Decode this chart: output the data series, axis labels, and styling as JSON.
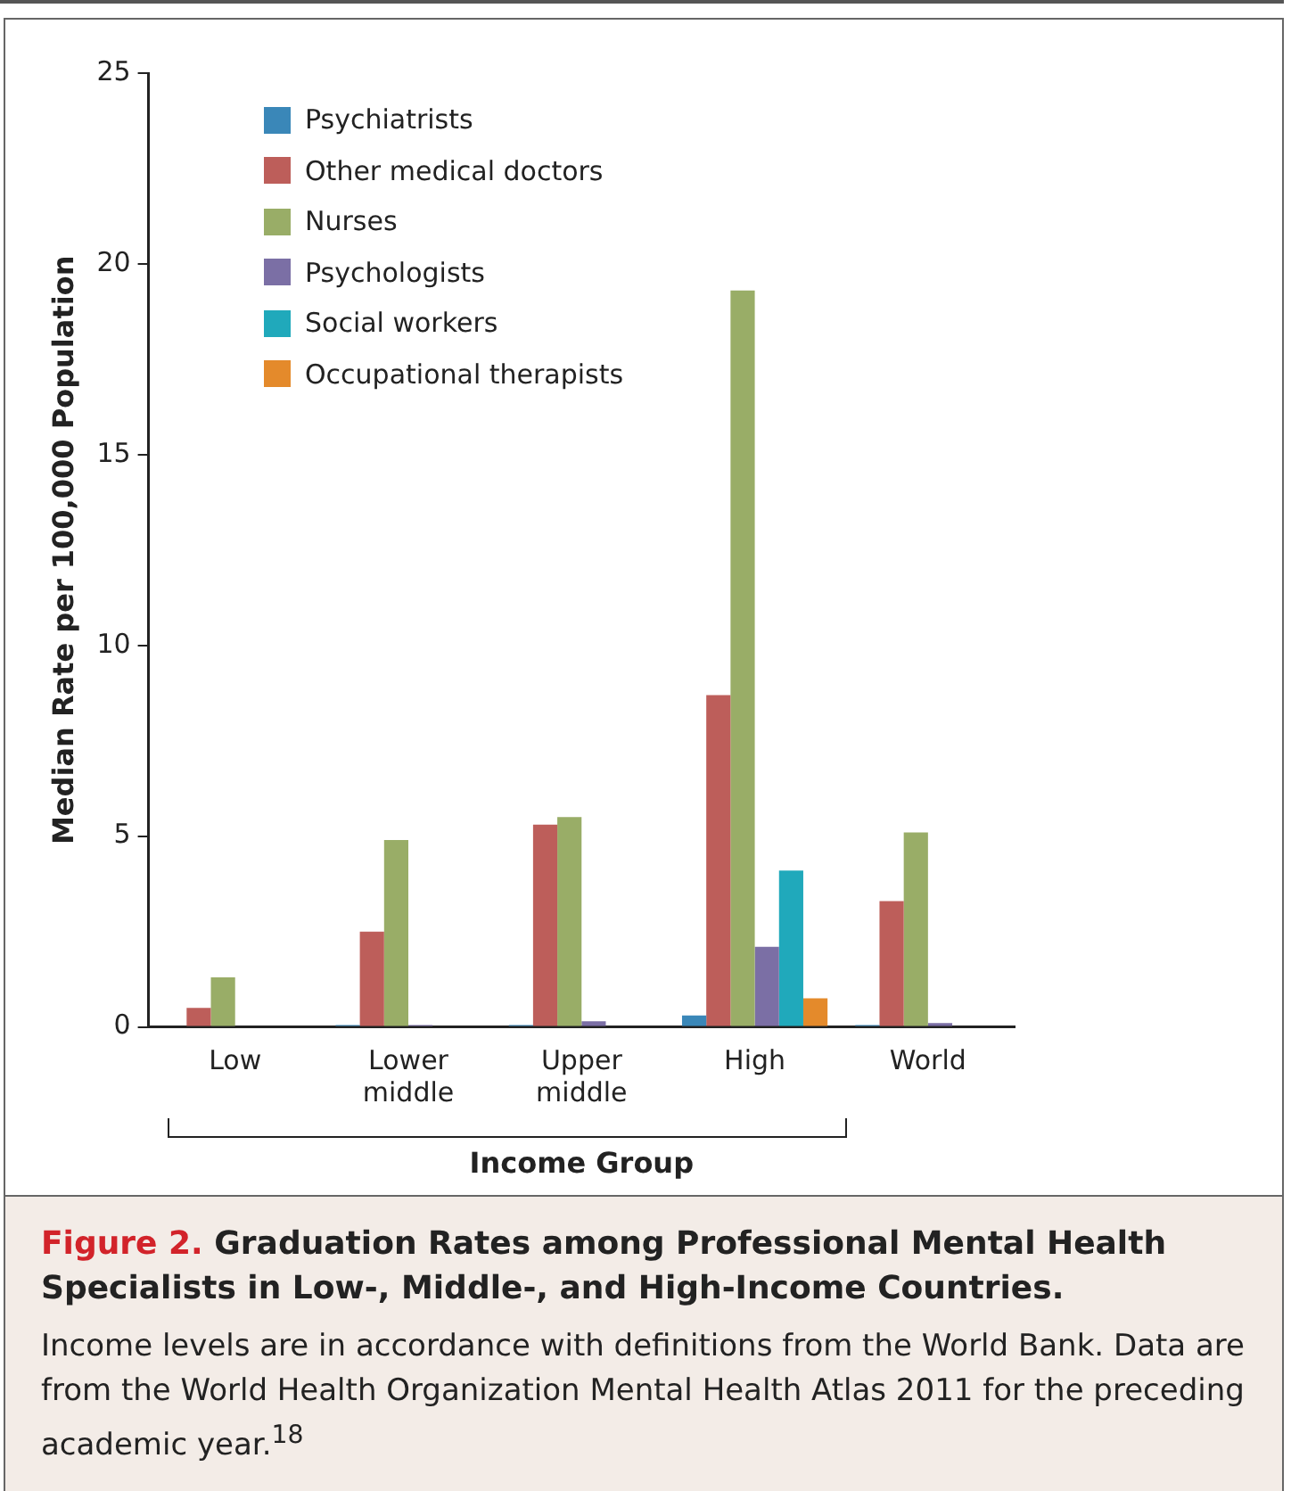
{
  "chart_data": {
    "type": "bar",
    "title": "Figure 2. Graduation Rates among Professional Mental Health Specialists in Low-, Middle-, and High-Income Countries.",
    "annotations": [
      "Income levels are in accordance with definitions from the World Bank. Data are from the World Health Organization Mental Health Atlas 2011 for the preceding academic year.$^{18}$"
    ],
    "xlabel": "Income Group",
    "ylabel": "Median Rate per 100,000 Population",
    "categories": [
      "Low",
      "Lower middle",
      "Upper middle",
      "High",
      "World"
    ],
    "series": [
      {
        "name": "Psychiatrists",
        "color": "#3a87b8",
        "values": [
          0,
          0.05,
          0.05,
          0.3,
          0.05
        ]
      },
      {
        "name": "Other medical doctors",
        "color": "#bd5e5a",
        "values": [
          0.5,
          2.5,
          5.3,
          8.7,
          3.3
        ]
      },
      {
        "name": "Nurses",
        "color": "#99ad67",
        "values": [
          1.3,
          4.9,
          5.5,
          19.3,
          5.1
        ]
      },
      {
        "name": "Psychologists",
        "color": "#7b6fa5",
        "values": [
          0,
          0.05,
          0.15,
          2.1,
          0.1
        ]
      },
      {
        "name": "Social workers",
        "color": "#20a9bb",
        "values": [
          0,
          0,
          0,
          4.1,
          0
        ]
      },
      {
        "name": "Occupational therapists",
        "color": "#e48a2b",
        "values": [
          0,
          0,
          0,
          0.75,
          0
        ]
      }
    ],
    "ylim": [
      0,
      25
    ],
    "yticks": [
      0,
      5,
      10,
      15,
      20,
      25
    ],
    "grid": false,
    "legend": "top left"
  }
}
